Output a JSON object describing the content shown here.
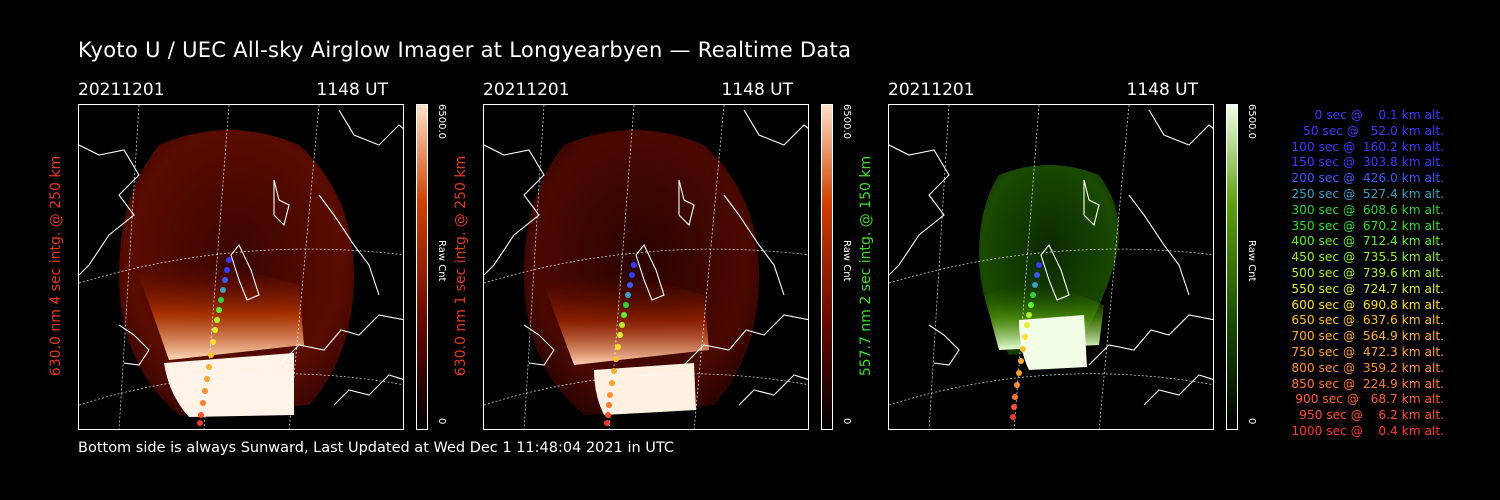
{
  "title": "Kyoto U / UEC All-sky Airglow Imager at Longyearbyen — Realtime Data",
  "footer": "Bottom side is always Sunward, Last Updated at Wed Dec  1 11:48:04 2021 in UTC",
  "panels": [
    {
      "date": "20211201",
      "time": "1148 UT",
      "side_label": "630.0 nm 4 sec intg. @ 250 km",
      "label_color": "#e23a1a",
      "cbar_max": "6500.0",
      "cbar_unit": "Raw Cnt",
      "cbar_min": "0",
      "cbar_color": "#b01800"
    },
    {
      "date": "20211201",
      "time": "1148 UT",
      "side_label": "630.0 nm 1 sec intg. @ 250 km",
      "label_color": "#e23a1a",
      "cbar_max": "6500.0",
      "cbar_unit": "Raw Cnt",
      "cbar_min": "0",
      "cbar_color": "#b01800"
    },
    {
      "date": "20211201",
      "time": "1148 UT",
      "side_label": "557.7 nm 2 sec intg. @ 150 km",
      "label_color": "#3ddc2a",
      "cbar_max": "6500.0",
      "cbar_unit": "Raw Cnt",
      "cbar_min": "0",
      "cbar_color": "#3a7a00"
    }
  ],
  "legend": [
    {
      "text": "   0 sec @    0.1 km alt.",
      "color": "#3a3aff"
    },
    {
      "text": "  50 sec @   52.0 km alt.",
      "color": "#3a3aff"
    },
    {
      "text": " 100 sec @  160.2 km alt.",
      "color": "#3a3aff"
    },
    {
      "text": " 150 sec @  303.8 km alt.",
      "color": "#3a3aff"
    },
    {
      "text": " 200 sec @  426.0 km alt.",
      "color": "#3a5aff"
    },
    {
      "text": " 250 sec @  527.4 km alt.",
      "color": "#3aa0c8"
    },
    {
      "text": " 300 sec @  608.6 km alt.",
      "color": "#30d040"
    },
    {
      "text": " 350 sec @  670.2 km alt.",
      "color": "#30e030"
    },
    {
      "text": " 400 sec @  712.4 km alt.",
      "color": "#60f030"
    },
    {
      "text": " 450 sec @  735.5 km alt.",
      "color": "#90f030"
    },
    {
      "text": " 500 sec @  739.6 km alt.",
      "color": "#b0f030"
    },
    {
      "text": " 550 sec @  724.7 km alt.",
      "color": "#e0f030"
    },
    {
      "text": " 600 sec @  690.8 km alt.",
      "color": "#ffe030"
    },
    {
      "text": " 650 sec @  637.6 km alt.",
      "color": "#ffc030"
    },
    {
      "text": " 700 sec @  564.9 km alt.",
      "color": "#ffb030"
    },
    {
      "text": " 750 sec @  472.3 km alt.",
      "color": "#ffa030"
    },
    {
      "text": " 800 sec @  359.2 km alt.",
      "color": "#ff9030"
    },
    {
      "text": " 850 sec @  224.9 km alt.",
      "color": "#ff7a30"
    },
    {
      "text": " 900 sec @   68.7 km alt.",
      "color": "#ff6030"
    },
    {
      "text": " 950 sec @    6.2 km alt.",
      "color": "#ff5030"
    },
    {
      "text": "1000 sec @    0.4 km alt.",
      "color": "#ff3a30"
    }
  ]
}
